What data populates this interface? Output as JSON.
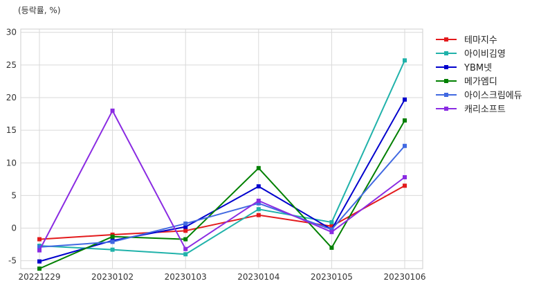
{
  "chart_data": {
    "type": "line",
    "unit_label": "(등락률, %)",
    "categories": [
      "20221229",
      "20230102",
      "20230103",
      "20230104",
      "20230105",
      "20230106"
    ],
    "ylim": [
      -6.2,
      30.5
    ],
    "yticks": [
      -5,
      0,
      5,
      10,
      15,
      20,
      25,
      30
    ],
    "grid": true,
    "legend_position": "right",
    "series": [
      {
        "name": "테마지수",
        "color": "#e31a1c",
        "values": [
          -1.7,
          -1.0,
          -0.4,
          2.0,
          0.3,
          6.5
        ]
      },
      {
        "name": "아이비김영",
        "color": "#20b2aa",
        "values": [
          -2.7,
          -3.3,
          -4.0,
          2.9,
          0.9,
          25.7
        ]
      },
      {
        "name": "YBM넷",
        "color": "#0000cd",
        "values": [
          -5.1,
          -1.9,
          0.2,
          6.4,
          -0.2,
          19.7
        ]
      },
      {
        "name": "메가엠디",
        "color": "#008000",
        "values": [
          -6.2,
          -1.3,
          -1.7,
          9.2,
          -3.0,
          16.5
        ]
      },
      {
        "name": "아이스크림에듀",
        "color": "#4169e1",
        "values": [
          -2.9,
          -2.1,
          0.7,
          3.8,
          -0.2,
          12.6
        ]
      },
      {
        "name": "캐리소프트",
        "color": "#8a2be2",
        "values": [
          -3.4,
          18.0,
          -3.2,
          4.2,
          -0.6,
          7.8
        ]
      }
    ]
  }
}
